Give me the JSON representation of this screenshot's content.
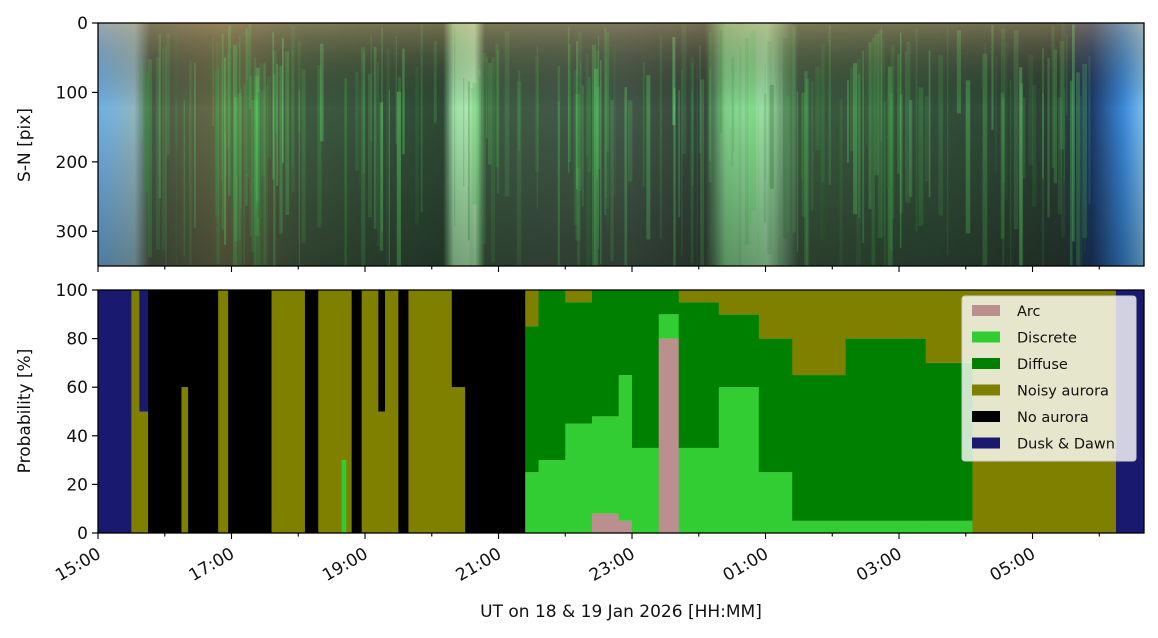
{
  "chart_data": [
    {
      "type": "heatmap",
      "ylabel": "S-N [pix]",
      "ylim": [
        350,
        0
      ],
      "yticks": [
        "0",
        "100",
        "200",
        "300"
      ],
      "xlim": [
        "15:00",
        "06:40"
      ],
      "grid": false
    },
    {
      "type": "area",
      "stacked": true,
      "ylabel": "Probability [%]",
      "xlabel": "UT on 18 & 19 Jan 2026 [HH:MM]",
      "ylim": [
        0,
        100
      ],
      "yticks": [
        "0",
        "20",
        "40",
        "60",
        "80",
        "100"
      ],
      "xticks": [
        "15:00",
        "17:00",
        "19:00",
        "21:00",
        "23:00",
        "01:00",
        "03:00",
        "05:00"
      ],
      "xlim_hours": [
        0,
        15.67
      ],
      "grid": false,
      "legend_position": "upper-right",
      "series": [
        {
          "name": "Arc",
          "color": "#bc8f8f"
        },
        {
          "name": "Discrete",
          "color": "#32cd32"
        },
        {
          "name": "Diffuse",
          "color": "#008000"
        },
        {
          "name": "Noisy aurora",
          "color": "#808000"
        },
        {
          "name": "No aurora",
          "color": "#000000"
        },
        {
          "name": "Dusk & Dawn",
          "color": "#191970"
        }
      ],
      "segments": [
        {
          "start": 0.0,
          "end": 0.5,
          "Arc": 0,
          "Discrete": 0,
          "Diffuse": 0,
          "Noisy aurora": 0,
          "No aurora": 0,
          "Dusk & Dawn": 100
        },
        {
          "start": 0.5,
          "end": 0.62,
          "Arc": 0,
          "Discrete": 0,
          "Diffuse": 0,
          "Noisy aurora": 100,
          "No aurora": 0,
          "Dusk & Dawn": 0
        },
        {
          "start": 0.62,
          "end": 0.75,
          "Arc": 0,
          "Discrete": 0,
          "Diffuse": 0,
          "Noisy aurora": 50,
          "No aurora": 0,
          "Dusk & Dawn": 50
        },
        {
          "start": 0.75,
          "end": 1.25,
          "Arc": 0,
          "Discrete": 0,
          "Diffuse": 0,
          "Noisy aurora": 0,
          "No aurora": 100,
          "Dusk & Dawn": 0
        },
        {
          "start": 1.25,
          "end": 1.35,
          "Arc": 0,
          "Discrete": 0,
          "Diffuse": 0,
          "Noisy aurora": 60,
          "No aurora": 40,
          "Dusk & Dawn": 0
        },
        {
          "start": 1.35,
          "end": 1.8,
          "Arc": 0,
          "Discrete": 0,
          "Diffuse": 0,
          "Noisy aurora": 0,
          "No aurora": 100,
          "Dusk & Dawn": 0
        },
        {
          "start": 1.8,
          "end": 1.95,
          "Arc": 0,
          "Discrete": 0,
          "Diffuse": 0,
          "Noisy aurora": 100,
          "No aurora": 0,
          "Dusk & Dawn": 0
        },
        {
          "start": 1.95,
          "end": 2.6,
          "Arc": 0,
          "Discrete": 0,
          "Diffuse": 0,
          "Noisy aurora": 0,
          "No aurora": 100,
          "Dusk & Dawn": 0
        },
        {
          "start": 2.6,
          "end": 3.1,
          "Arc": 0,
          "Discrete": 0,
          "Diffuse": 0,
          "Noisy aurora": 100,
          "No aurora": 0,
          "Dusk & Dawn": 0
        },
        {
          "start": 3.1,
          "end": 3.3,
          "Arc": 0,
          "Discrete": 0,
          "Diffuse": 0,
          "Noisy aurora": 0,
          "No aurora": 100,
          "Dusk & Dawn": 0
        },
        {
          "start": 3.3,
          "end": 3.65,
          "Arc": 0,
          "Discrete": 0,
          "Diffuse": 0,
          "Noisy aurora": 100,
          "No aurora": 0,
          "Dusk & Dawn": 0
        },
        {
          "start": 3.65,
          "end": 3.72,
          "Arc": 0,
          "Discrete": 30,
          "Diffuse": 0,
          "Noisy aurora": 70,
          "No aurora": 0,
          "Dusk & Dawn": 0
        },
        {
          "start": 3.72,
          "end": 3.8,
          "Arc": 0,
          "Discrete": 0,
          "Diffuse": 0,
          "Noisy aurora": 100,
          "No aurora": 0,
          "Dusk & Dawn": 0
        },
        {
          "start": 3.8,
          "end": 3.95,
          "Arc": 0,
          "Discrete": 0,
          "Diffuse": 0,
          "Noisy aurora": 0,
          "No aurora": 100,
          "Dusk & Dawn": 0
        },
        {
          "start": 3.95,
          "end": 4.2,
          "Arc": 0,
          "Discrete": 0,
          "Diffuse": 0,
          "Noisy aurora": 100,
          "No aurora": 0,
          "Dusk & Dawn": 0
        },
        {
          "start": 4.2,
          "end": 4.3,
          "Arc": 0,
          "Discrete": 0,
          "Diffuse": 0,
          "Noisy aurora": 50,
          "No aurora": 50,
          "Dusk & Dawn": 0
        },
        {
          "start": 4.3,
          "end": 4.5,
          "Arc": 0,
          "Discrete": 0,
          "Diffuse": 0,
          "Noisy aurora": 100,
          "No aurora": 0,
          "Dusk & Dawn": 0
        },
        {
          "start": 4.5,
          "end": 4.65,
          "Arc": 0,
          "Discrete": 0,
          "Diffuse": 0,
          "Noisy aurora": 0,
          "No aurora": 100,
          "Dusk & Dawn": 0
        },
        {
          "start": 4.65,
          "end": 5.3,
          "Arc": 0,
          "Discrete": 0,
          "Diffuse": 0,
          "Noisy aurora": 100,
          "No aurora": 0,
          "Dusk & Dawn": 0
        },
        {
          "start": 5.3,
          "end": 5.5,
          "Arc": 0,
          "Discrete": 0,
          "Diffuse": 0,
          "Noisy aurora": 60,
          "No aurora": 40,
          "Dusk & Dawn": 0
        },
        {
          "start": 5.5,
          "end": 6.4,
          "Arc": 0,
          "Discrete": 0,
          "Diffuse": 0,
          "Noisy aurora": 0,
          "No aurora": 100,
          "Dusk & Dawn": 0
        },
        {
          "start": 6.4,
          "end": 6.6,
          "Arc": 0,
          "Discrete": 25,
          "Diffuse": 60,
          "Noisy aurora": 15,
          "No aurora": 0,
          "Dusk & Dawn": 0
        },
        {
          "start": 6.6,
          "end": 7.0,
          "Arc": 0,
          "Discrete": 30,
          "Diffuse": 70,
          "Noisy aurora": 0,
          "No aurora": 0,
          "Dusk & Dawn": 0
        },
        {
          "start": 7.0,
          "end": 7.4,
          "Arc": 0,
          "Discrete": 45,
          "Diffuse": 50,
          "Noisy aurora": 5,
          "No aurora": 0,
          "Dusk & Dawn": 0
        },
        {
          "start": 7.4,
          "end": 7.8,
          "Arc": 8,
          "Discrete": 40,
          "Diffuse": 52,
          "Noisy aurora": 0,
          "No aurora": 0,
          "Dusk & Dawn": 0
        },
        {
          "start": 7.8,
          "end": 8.0,
          "Arc": 5,
          "Discrete": 60,
          "Diffuse": 35,
          "Noisy aurora": 0,
          "No aurora": 0,
          "Dusk & Dawn": 0
        },
        {
          "start": 8.0,
          "end": 8.4,
          "Arc": 0,
          "Discrete": 35,
          "Diffuse": 65,
          "Noisy aurora": 0,
          "No aurora": 0,
          "Dusk & Dawn": 0
        },
        {
          "start": 8.4,
          "end": 8.7,
          "Arc": 80,
          "Discrete": 10,
          "Diffuse": 10,
          "Noisy aurora": 0,
          "No aurora": 0,
          "Dusk & Dawn": 0
        },
        {
          "start": 8.7,
          "end": 9.3,
          "Arc": 0,
          "Discrete": 35,
          "Diffuse": 60,
          "Noisy aurora": 5,
          "No aurora": 0,
          "Dusk & Dawn": 0
        },
        {
          "start": 9.3,
          "end": 9.9,
          "Arc": 0,
          "Discrete": 60,
          "Diffuse": 30,
          "Noisy aurora": 10,
          "No aurora": 0,
          "Dusk & Dawn": 0
        },
        {
          "start": 9.9,
          "end": 10.4,
          "Arc": 0,
          "Discrete": 25,
          "Diffuse": 55,
          "Noisy aurora": 20,
          "No aurora": 0,
          "Dusk & Dawn": 0
        },
        {
          "start": 10.4,
          "end": 11.2,
          "Arc": 0,
          "Discrete": 5,
          "Diffuse": 60,
          "Noisy aurora": 35,
          "No aurora": 0,
          "Dusk & Dawn": 0
        },
        {
          "start": 11.2,
          "end": 12.4,
          "Arc": 0,
          "Discrete": 5,
          "Diffuse": 75,
          "Noisy aurora": 20,
          "No aurora": 0,
          "Dusk & Dawn": 0
        },
        {
          "start": 12.4,
          "end": 13.1,
          "Arc": 0,
          "Discrete": 5,
          "Diffuse": 65,
          "Noisy aurora": 30,
          "No aurora": 0,
          "Dusk & Dawn": 0
        },
        {
          "start": 13.1,
          "end": 15.25,
          "Arc": 0,
          "Discrete": 0,
          "Diffuse": 0,
          "Noisy aurora": 100,
          "No aurora": 0,
          "Dusk & Dawn": 0
        },
        {
          "start": 15.25,
          "end": 15.67,
          "Arc": 0,
          "Discrete": 0,
          "Diffuse": 0,
          "Noisy aurora": 0,
          "No aurora": 0,
          "Dusk & Dawn": 100
        }
      ]
    }
  ]
}
